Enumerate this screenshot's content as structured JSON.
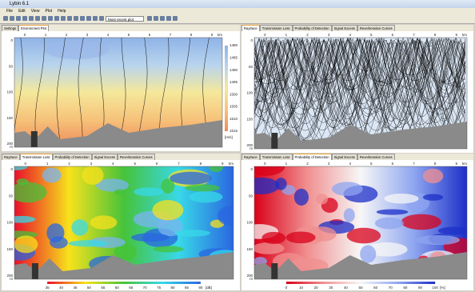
{
  "window": {
    "title": "Lybin 6.1",
    "menu": [
      "File",
      "Edit",
      "View",
      "Plot",
      "Help"
    ],
    "plot_select": "Most recent plot"
  },
  "panels": [
    {
      "tabs": [
        "Settings",
        "Environment Plot"
      ],
      "active_tab": 1,
      "style": "environment",
      "x_ticks": [
        "0",
        "1",
        "2",
        "3",
        "4",
        "5",
        "6",
        "7",
        "8",
        "9"
      ],
      "x_unit": "km",
      "y_ticks": [
        "0",
        "50",
        "100",
        "150",
        "200"
      ],
      "y_unit": "m",
      "colorbar": [
        "1480",
        "1485",
        "1490",
        "1495",
        "1500",
        "1505",
        "1510",
        "1515"
      ],
      "colorbar_unit": "[m/s]"
    },
    {
      "tabs": [
        "Raytrace",
        "Transmission Loss",
        "Probability of Detection",
        "Signal Excess",
        "Reverberation Curves"
      ],
      "active_tab": 0,
      "style": "raytrace",
      "x_ticks": [
        "0",
        "1",
        "2",
        "3",
        "4",
        "5",
        "6",
        "7",
        "8",
        "9"
      ],
      "x_unit": "km",
      "y_ticks": [
        "0",
        "50",
        "100",
        "150",
        "200"
      ],
      "y_unit": "m"
    },
    {
      "tabs": [
        "Raytrace",
        "Transmission Loss",
        "Probability of Detection",
        "Signal Excess",
        "Reverberation Curves"
      ],
      "active_tab": 1,
      "style": "transmission",
      "x_ticks": [
        "0",
        "1",
        "2",
        "3",
        "4",
        "5",
        "6",
        "7",
        "8",
        "9"
      ],
      "x_unit": "km",
      "y_ticks": [
        "0",
        "50",
        "100",
        "150",
        "200"
      ],
      "y_unit": "m",
      "colorbar": [
        "35",
        "40",
        "45",
        "50",
        "55",
        "60",
        "65",
        "70",
        "75",
        "80",
        "85",
        "90"
      ],
      "colorbar_unit": "[dB]"
    },
    {
      "tabs": [
        "Raytrace",
        "Transmission Loss",
        "Probability of Detection",
        "Signal Excess",
        "Reverberation Curves"
      ],
      "active_tab": 2,
      "style": "probability",
      "x_ticks": [
        "0",
        "1",
        "2",
        "3",
        "4",
        "5",
        "6",
        "7",
        "8",
        "9"
      ],
      "x_unit": "km",
      "y_ticks": [
        "0",
        "50",
        "100",
        "150",
        "200"
      ],
      "y_unit": "m",
      "colorbar": [
        "0",
        "10",
        "20",
        "30",
        "40",
        "50",
        "60",
        "70",
        "80",
        "90",
        "100"
      ],
      "colorbar_unit": "[%]"
    }
  ]
}
